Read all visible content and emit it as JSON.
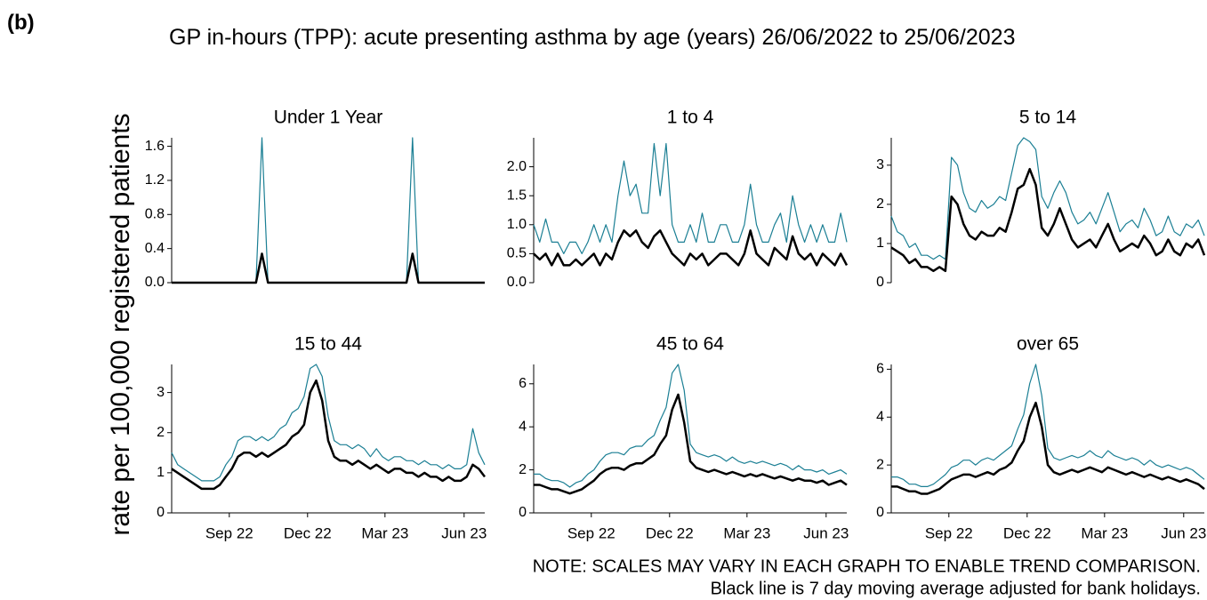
{
  "figure": {
    "panel_label": "(b)",
    "title": "GP in-hours (TPP): acute presenting asthma by age (years) 26/06/2022 to 25/06/2023",
    "ylabel": "rate per 100,000 registered patients",
    "note": "NOTE: SCALES MAY VARY IN EACH GRAPH TO ENABLE TREND COMPARISON.",
    "note2": "Black line is 7 day moving average adjusted for bank holidays."
  },
  "chart_data": [
    {
      "type": "line",
      "title": "Under 1 Year",
      "xlim": [
        0,
        364
      ],
      "ylim": [
        0,
        1.7
      ],
      "yticks": [
        {
          "value": 0,
          "label": "0.0"
        },
        {
          "value": 0.4,
          "label": "0.4"
        },
        {
          "value": 0.8,
          "label": "0.8"
        },
        {
          "value": 1.2,
          "label": "1.2"
        },
        {
          "value": 1.6,
          "label": "1.6"
        }
      ],
      "x": [
        0,
        7,
        14,
        21,
        28,
        35,
        42,
        49,
        56,
        63,
        70,
        77,
        84,
        91,
        98,
        105,
        112,
        119,
        126,
        133,
        140,
        147,
        154,
        161,
        168,
        175,
        182,
        189,
        196,
        203,
        210,
        217,
        224,
        231,
        238,
        245,
        252,
        259,
        266,
        273,
        280,
        287,
        294,
        301,
        308,
        315,
        322,
        329,
        336,
        343,
        350,
        357,
        364
      ],
      "series": [
        {
          "color": "#1b7f94",
          "values": [
            0,
            0,
            0,
            0,
            0,
            0,
            0,
            0,
            0,
            0,
            0,
            0,
            0,
            0,
            0,
            1.7,
            0,
            0,
            0,
            0,
            0,
            0,
            0,
            0,
            0,
            0,
            0,
            0,
            0,
            0,
            0,
            0,
            0,
            0,
            0,
            0,
            0,
            0,
            0,
            0,
            1.7,
            0,
            0,
            0,
            0,
            0,
            0,
            0,
            0,
            0,
            0,
            0,
            0
          ]
        },
        {
          "color": "#000000",
          "values": [
            0,
            0,
            0,
            0,
            0,
            0,
            0,
            0,
            0,
            0,
            0,
            0,
            0,
            0,
            0,
            0.34,
            0,
            0,
            0,
            0,
            0,
            0,
            0,
            0,
            0,
            0,
            0,
            0,
            0,
            0,
            0,
            0,
            0,
            0,
            0,
            0,
            0,
            0,
            0,
            0,
            0.34,
            0,
            0,
            0,
            0,
            0,
            0,
            0,
            0,
            0,
            0,
            0,
            0
          ]
        }
      ]
    },
    {
      "type": "line",
      "title": "1 to 4",
      "xlim": [
        0,
        364
      ],
      "ylim": [
        0,
        2.5
      ],
      "yticks": [
        {
          "value": 0,
          "label": "0.0"
        },
        0.5,
        {
          "value": 1,
          "label": "1.0"
        },
        1.5,
        {
          "value": 2,
          "label": "2.0"
        }
      ],
      "x": [
        0,
        7,
        14,
        21,
        28,
        35,
        42,
        49,
        56,
        63,
        70,
        77,
        84,
        91,
        98,
        105,
        112,
        119,
        126,
        133,
        140,
        147,
        154,
        161,
        168,
        175,
        182,
        189,
        196,
        203,
        210,
        217,
        224,
        231,
        238,
        245,
        252,
        259,
        266,
        273,
        280,
        287,
        294,
        301,
        308,
        315,
        322,
        329,
        336,
        343,
        350,
        357,
        364
      ],
      "series": [
        {
          "color": "#1b7f94",
          "values": [
            1.0,
            0.7,
            1.1,
            0.7,
            0.7,
            0.5,
            0.7,
            0.7,
            0.5,
            0.7,
            1.0,
            0.7,
            1.0,
            0.7,
            1.5,
            2.1,
            1.5,
            1.7,
            1.2,
            1.2,
            2.4,
            1.5,
            2.4,
            1.0,
            0.7,
            0.7,
            1.0,
            0.7,
            1.2,
            0.7,
            0.7,
            1.0,
            1.0,
            0.7,
            0.7,
            1.0,
            1.7,
            1.0,
            0.7,
            0.7,
            1.0,
            1.2,
            0.7,
            1.5,
            1.0,
            0.7,
            1.0,
            0.7,
            1.0,
            0.7,
            0.7,
            1.2,
            0.7
          ]
        },
        {
          "color": "#000000",
          "values": [
            0.5,
            0.4,
            0.5,
            0.3,
            0.5,
            0.3,
            0.3,
            0.4,
            0.3,
            0.4,
            0.5,
            0.3,
            0.5,
            0.4,
            0.7,
            0.9,
            0.8,
            0.9,
            0.7,
            0.6,
            0.8,
            0.9,
            0.7,
            0.5,
            0.4,
            0.3,
            0.5,
            0.4,
            0.5,
            0.3,
            0.4,
            0.5,
            0.5,
            0.4,
            0.3,
            0.5,
            0.9,
            0.5,
            0.4,
            0.3,
            0.6,
            0.5,
            0.4,
            0.8,
            0.5,
            0.4,
            0.5,
            0.3,
            0.5,
            0.4,
            0.3,
            0.5,
            0.3
          ]
        }
      ]
    },
    {
      "type": "line",
      "title": "5 to 14",
      "xlim": [
        0,
        364
      ],
      "ylim": [
        0,
        3.7
      ],
      "yticks": [
        0,
        1,
        2,
        3
      ],
      "x": [
        0,
        7,
        14,
        21,
        28,
        35,
        42,
        49,
        56,
        63,
        70,
        77,
        84,
        91,
        98,
        105,
        112,
        119,
        126,
        133,
        140,
        147,
        154,
        161,
        168,
        175,
        182,
        189,
        196,
        203,
        210,
        217,
        224,
        231,
        238,
        245,
        252,
        259,
        266,
        273,
        280,
        287,
        294,
        301,
        308,
        315,
        322,
        329,
        336,
        343,
        350,
        357,
        364
      ],
      "series": [
        {
          "color": "#1b7f94",
          "values": [
            1.7,
            1.3,
            1.2,
            0.9,
            1.0,
            0.7,
            0.7,
            0.6,
            0.7,
            0.6,
            3.2,
            3.0,
            2.3,
            1.9,
            1.8,
            2.1,
            1.9,
            2.0,
            2.2,
            2.1,
            2.8,
            3.5,
            3.7,
            3.6,
            3.4,
            2.2,
            1.9,
            2.3,
            2.6,
            2.3,
            1.8,
            1.5,
            1.6,
            1.8,
            1.5,
            1.9,
            2.3,
            1.8,
            1.3,
            1.5,
            1.6,
            1.4,
            1.9,
            1.6,
            1.2,
            1.3,
            1.7,
            1.3,
            1.2,
            1.5,
            1.4,
            1.6,
            1.2
          ]
        },
        {
          "color": "#000000",
          "values": [
            0.9,
            0.8,
            0.7,
            0.5,
            0.6,
            0.4,
            0.4,
            0.3,
            0.4,
            0.3,
            2.2,
            2.0,
            1.5,
            1.2,
            1.1,
            1.3,
            1.2,
            1.2,
            1.4,
            1.3,
            1.8,
            2.4,
            2.5,
            2.9,
            2.5,
            1.4,
            1.2,
            1.5,
            1.9,
            1.5,
            1.1,
            0.9,
            1.0,
            1.1,
            0.9,
            1.2,
            1.5,
            1.1,
            0.8,
            0.9,
            1.0,
            0.9,
            1.2,
            1.0,
            0.7,
            0.8,
            1.1,
            0.8,
            0.7,
            1.0,
            0.9,
            1.1,
            0.7
          ]
        }
      ]
    },
    {
      "type": "line",
      "title": "15 to 44",
      "xlim": [
        0,
        364
      ],
      "ylim": [
        0,
        3.7
      ],
      "yticks": [
        0,
        1,
        2,
        3
      ],
      "xticks": [
        {
          "value": 67,
          "label": "Sep 22"
        },
        {
          "value": 158,
          "label": "Dec 22"
        },
        {
          "value": 248,
          "label": "Mar 23"
        },
        {
          "value": 340,
          "label": "Jun 23"
        }
      ],
      "x": [
        0,
        7,
        14,
        21,
        28,
        35,
        42,
        49,
        56,
        63,
        70,
        77,
        84,
        91,
        98,
        105,
        112,
        119,
        126,
        133,
        140,
        147,
        154,
        161,
        168,
        175,
        182,
        189,
        196,
        203,
        210,
        217,
        224,
        231,
        238,
        245,
        252,
        259,
        266,
        273,
        280,
        287,
        294,
        301,
        308,
        315,
        322,
        329,
        336,
        343,
        350,
        357,
        364
      ],
      "series": [
        {
          "color": "#1b7f94",
          "values": [
            1.5,
            1.2,
            1.1,
            1.0,
            0.9,
            0.8,
            0.8,
            0.8,
            0.9,
            1.2,
            1.4,
            1.8,
            1.9,
            1.9,
            1.8,
            1.9,
            1.8,
            1.9,
            2.1,
            2.2,
            2.5,
            2.6,
            2.9,
            3.6,
            3.7,
            3.4,
            2.4,
            1.8,
            1.7,
            1.7,
            1.6,
            1.7,
            1.6,
            1.4,
            1.6,
            1.4,
            1.3,
            1.4,
            1.4,
            1.3,
            1.3,
            1.2,
            1.3,
            1.2,
            1.2,
            1.1,
            1.2,
            1.1,
            1.1,
            1.2,
            2.1,
            1.5,
            1.2
          ]
        },
        {
          "color": "#000000",
          "values": [
            1.1,
            1.0,
            0.9,
            0.8,
            0.7,
            0.6,
            0.6,
            0.6,
            0.7,
            0.9,
            1.1,
            1.4,
            1.5,
            1.5,
            1.4,
            1.5,
            1.4,
            1.5,
            1.6,
            1.7,
            1.9,
            2.0,
            2.2,
            3.0,
            3.3,
            2.8,
            1.8,
            1.4,
            1.3,
            1.3,
            1.2,
            1.3,
            1.2,
            1.1,
            1.2,
            1.1,
            1.0,
            1.1,
            1.1,
            1.0,
            1.0,
            0.9,
            1.0,
            0.9,
            0.9,
            0.8,
            0.9,
            0.8,
            0.8,
            0.9,
            1.2,
            1.1,
            0.9
          ]
        }
      ]
    },
    {
      "type": "line",
      "title": "45 to 64",
      "xlim": [
        0,
        364
      ],
      "ylim": [
        0,
        6.9
      ],
      "yticks": [
        0,
        2,
        4,
        6
      ],
      "xticks": [
        {
          "value": 67,
          "label": "Sep 22"
        },
        {
          "value": 158,
          "label": "Dec 22"
        },
        {
          "value": 248,
          "label": "Mar 23"
        },
        {
          "value": 340,
          "label": "Jun 23"
        }
      ],
      "x": [
        0,
        7,
        14,
        21,
        28,
        35,
        42,
        49,
        56,
        63,
        70,
        77,
        84,
        91,
        98,
        105,
        112,
        119,
        126,
        133,
        140,
        147,
        154,
        161,
        168,
        175,
        182,
        189,
        196,
        203,
        210,
        217,
        224,
        231,
        238,
        245,
        252,
        259,
        266,
        273,
        280,
        287,
        294,
        301,
        308,
        315,
        322,
        329,
        336,
        343,
        350,
        357,
        364
      ],
      "series": [
        {
          "color": "#1b7f94",
          "values": [
            1.8,
            1.8,
            1.6,
            1.5,
            1.5,
            1.4,
            1.2,
            1.4,
            1.5,
            1.8,
            2.0,
            2.4,
            2.7,
            2.8,
            2.8,
            2.7,
            3.0,
            3.1,
            3.1,
            3.4,
            3.6,
            4.3,
            4.9,
            6.5,
            6.9,
            5.7,
            3.2,
            2.8,
            2.7,
            2.6,
            2.7,
            2.6,
            2.4,
            2.6,
            2.4,
            2.3,
            2.4,
            2.3,
            2.4,
            2.3,
            2.2,
            2.3,
            2.2,
            2.0,
            2.2,
            2.0,
            2.0,
            1.9,
            2.0,
            1.8,
            1.9,
            2.0,
            1.8
          ]
        },
        {
          "color": "#000000",
          "values": [
            1.3,
            1.3,
            1.2,
            1.1,
            1.1,
            1.0,
            0.9,
            1.0,
            1.1,
            1.3,
            1.5,
            1.8,
            2.0,
            2.1,
            2.1,
            2.0,
            2.2,
            2.3,
            2.3,
            2.5,
            2.7,
            3.2,
            3.6,
            4.8,
            5.5,
            4.2,
            2.4,
            2.1,
            2.0,
            1.9,
            2.0,
            1.9,
            1.8,
            1.9,
            1.8,
            1.7,
            1.8,
            1.7,
            1.8,
            1.7,
            1.6,
            1.7,
            1.6,
            1.5,
            1.6,
            1.5,
            1.5,
            1.4,
            1.5,
            1.3,
            1.4,
            1.5,
            1.3
          ]
        }
      ]
    },
    {
      "type": "line",
      "title": "over 65",
      "xlim": [
        0,
        364
      ],
      "ylim": [
        0,
        6.2
      ],
      "yticks": [
        0,
        2,
        4,
        6
      ],
      "xticks": [
        {
          "value": 67,
          "label": "Sep 22"
        },
        {
          "value": 158,
          "label": "Dec 22"
        },
        {
          "value": 248,
          "label": "Mar 23"
        },
        {
          "value": 340,
          "label": "Jun 23"
        }
      ],
      "x": [
        0,
        7,
        14,
        21,
        28,
        35,
        42,
        49,
        56,
        63,
        70,
        77,
        84,
        91,
        98,
        105,
        112,
        119,
        126,
        133,
        140,
        147,
        154,
        161,
        168,
        175,
        182,
        189,
        196,
        203,
        210,
        217,
        224,
        231,
        238,
        245,
        252,
        259,
        266,
        273,
        280,
        287,
        294,
        301,
        308,
        315,
        322,
        329,
        336,
        343,
        350,
        357,
        364
      ],
      "series": [
        {
          "color": "#1b7f94",
          "values": [
            1.5,
            1.5,
            1.4,
            1.2,
            1.2,
            1.1,
            1.1,
            1.2,
            1.4,
            1.6,
            1.9,
            2.0,
            2.2,
            2.2,
            2.0,
            2.2,
            2.3,
            2.2,
            2.4,
            2.6,
            2.8,
            3.5,
            4.1,
            5.4,
            6.2,
            4.9,
            2.7,
            2.3,
            2.2,
            2.3,
            2.4,
            2.3,
            2.4,
            2.6,
            2.4,
            2.3,
            2.6,
            2.4,
            2.3,
            2.2,
            2.3,
            2.2,
            2.0,
            2.2,
            2.0,
            1.9,
            2.0,
            1.9,
            1.8,
            1.9,
            1.8,
            1.6,
            1.4
          ]
        },
        {
          "color": "#000000",
          "values": [
            1.1,
            1.1,
            1.0,
            0.9,
            0.9,
            0.8,
            0.8,
            0.9,
            1.0,
            1.2,
            1.4,
            1.5,
            1.6,
            1.6,
            1.5,
            1.6,
            1.7,
            1.6,
            1.8,
            1.9,
            2.1,
            2.6,
            3.0,
            4.0,
            4.6,
            3.6,
            2.0,
            1.7,
            1.6,
            1.7,
            1.8,
            1.7,
            1.8,
            1.9,
            1.8,
            1.7,
            1.9,
            1.8,
            1.7,
            1.6,
            1.7,
            1.6,
            1.5,
            1.6,
            1.5,
            1.4,
            1.5,
            1.4,
            1.3,
            1.4,
            1.3,
            1.2,
            1.0
          ]
        }
      ]
    }
  ]
}
